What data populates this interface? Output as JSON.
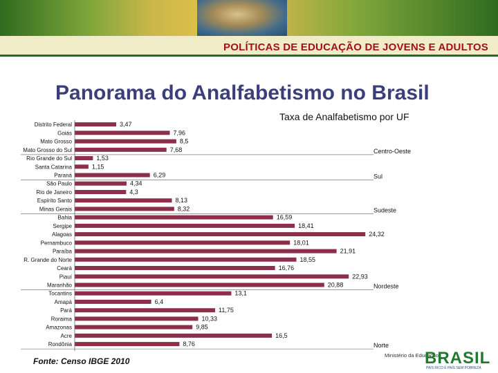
{
  "header": {
    "banner_title": "POLÍTICAS DE EDUCAÇÃO DE JOVENS E  ADULTOS"
  },
  "main_title": "Panorama do Analfabetismo no Brasil",
  "footer": {
    "source": "Fonte: Censo IBGE 2010",
    "ministry_logo": "Ministério da Educação",
    "brasil_logo": "BRASIL",
    "brasil_motto": "PAÍS RICO É PAÍS SEM POBREZA"
  },
  "colors": {
    "bar": "#8b2f4a",
    "title": "#3a3f7a",
    "banner_text": "#a30f1a"
  },
  "chart_data": {
    "type": "bar",
    "orientation": "horizontal",
    "title": "Taxa de Analfabetismo por UF",
    "categories": [
      "Distrito Federal",
      "Goiás",
      "Mato Grosso",
      "Mato Grosso do Sul",
      "Rio Grande do Sul",
      "Santa Catarina",
      "Paraná",
      "São Paulo",
      "Rio de Janeiro",
      "Espírito Santo",
      "Minas Gerais",
      "Bahia",
      "Sergipe",
      "Alagoas",
      "Pernambuco",
      "Paraíba",
      "R. Grande do Norte",
      "Ceará",
      "Piauí",
      "Maranhão",
      "Tocantins",
      "Amapá",
      "Pará",
      "Roraima",
      "Amazonas",
      "Acre",
      "Rondônia"
    ],
    "values": [
      3.47,
      7.96,
      8.5,
      7.68,
      1.53,
      1.15,
      6.29,
      4.34,
      4.3,
      8.13,
      8.32,
      16.59,
      18.41,
      24.32,
      18.01,
      21.91,
      18.55,
      16.76,
      22.93,
      20.88,
      13.1,
      6.4,
      11.75,
      10.33,
      9.85,
      16.5,
      8.76
    ],
    "value_labels": [
      "3,47",
      "7,96",
      "8,5",
      "7,68",
      "1,53",
      "1,15",
      "6,29",
      "4,34",
      "4,3",
      "8,13",
      "8,32",
      "16,59",
      "18,41",
      "24,32",
      "18,01",
      "21,91",
      "18,55",
      "16,76",
      "22,93",
      "20,88",
      "13,1",
      "6,4",
      "11,75",
      "10,33",
      "9,85",
      "16,5",
      "8,76"
    ],
    "regions": [
      {
        "name": "Centro-Oeste",
        "rows": 4
      },
      {
        "name": "Sul",
        "rows": 3
      },
      {
        "name": "Sudeste",
        "rows": 4
      },
      {
        "name": "Nordeste",
        "rows": 9
      },
      {
        "name": "Norte",
        "rows": 7
      }
    ],
    "xlim": [
      0,
      25
    ],
    "xticks": [
      "0",
      "5",
      "10",
      "15",
      "20",
      "25"
    ],
    "grid": false
  }
}
